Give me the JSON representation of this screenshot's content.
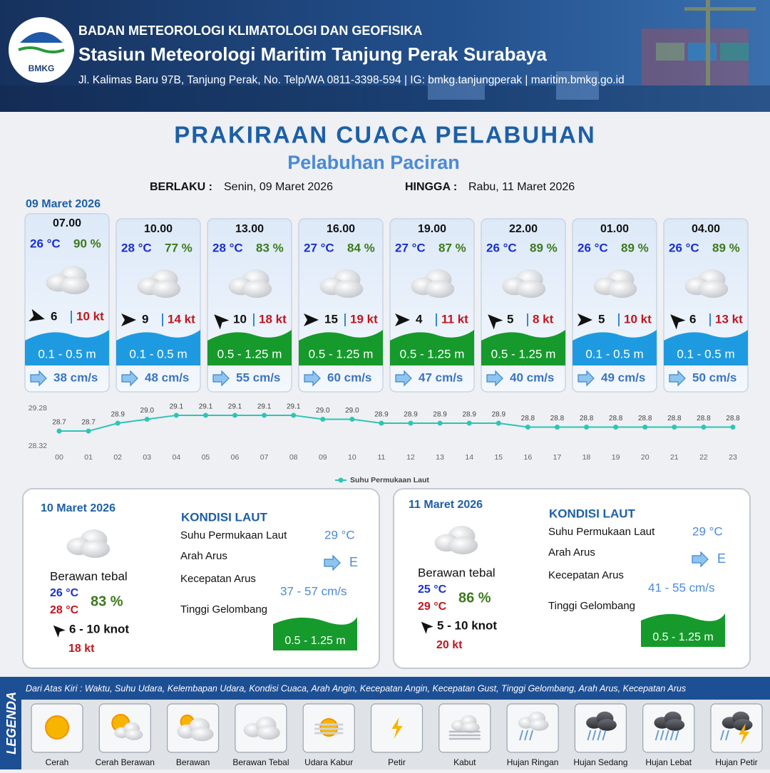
{
  "header": {
    "logo": "BMKG",
    "agency": "BADAN METEOROLOGI KLIMATOLOGI DAN GEOFISIKA",
    "station": "Stasiun Meteorologi Maritim Tanjung Perak Surabaya",
    "address": "Jl. Kalimas Baru 97B, Tanjung Perak, No. Telp/WA 0811-3398-594 | IG: bmkg.tanjungperak | maritim.bmkg.go.id"
  },
  "title": "PRAKIRAAN CUACA PELABUHAN",
  "subtitle": "Pelabuhan Paciran",
  "validity": {
    "from_label": "BERLAKU :",
    "from": "Senin, 09 Maret 2026",
    "to_label": "HINGGA :",
    "to": "Rabu, 11 Maret 2026"
  },
  "day1": "09 Maret 2026",
  "cards": [
    {
      "time": "07.00",
      "temp": "26 °C",
      "humidity": "90 %",
      "wind_heading": 15,
      "wind": "6",
      "gust": "10 kt",
      "wave": "0.1 - 0.5 m",
      "wave_color": "#1e9be0",
      "current": "38 cm/s"
    },
    {
      "time": "10.00",
      "temp": "28 °C",
      "humidity": "77 %",
      "wind_heading": 0,
      "wind": "9",
      "gust": "14 kt",
      "wave": "0.1 - 0.5 m",
      "wave_color": "#1e9be0",
      "current": "48 cm/s"
    },
    {
      "time": "13.00",
      "temp": "28 °C",
      "humidity": "83 %",
      "wind_heading": 225,
      "wind": "10",
      "gust": "18 kt",
      "wave": "0.5 - 1.25 m",
      "wave_color": "#169a2c",
      "current": "55 cm/s"
    },
    {
      "time": "16.00",
      "temp": "27 °C",
      "humidity": "84 %",
      "wind_heading": 0,
      "wind": "15",
      "gust": "19 kt",
      "wave": "0.5 - 1.25 m",
      "wave_color": "#169a2c",
      "current": "60 cm/s"
    },
    {
      "time": "19.00",
      "temp": "27 °C",
      "humidity": "87 %",
      "wind_heading": 0,
      "wind": "4",
      "gust": "11 kt",
      "wave": "0.5 - 1.25 m",
      "wave_color": "#169a2c",
      "current": "47 cm/s"
    },
    {
      "time": "22.00",
      "temp": "26 °C",
      "humidity": "89 %",
      "wind_heading": 225,
      "wind": "5",
      "gust": "8 kt",
      "wave": "0.5 - 1.25 m",
      "wave_color": "#169a2c",
      "current": "40 cm/s"
    },
    {
      "time": "01.00",
      "temp": "26 °C",
      "humidity": "89 %",
      "wind_heading": 0,
      "wind": "5",
      "gust": "10 kt",
      "wave": "0.1 - 0.5 m",
      "wave_color": "#1e9be0",
      "current": "49 cm/s"
    },
    {
      "time": "04.00",
      "temp": "26 °C",
      "humidity": "89 %",
      "wind_heading": 225,
      "wind": "6",
      "gust": "13 kt",
      "wave": "0.1 - 0.5 m",
      "wave_color": "#1e9be0",
      "current": "50 cm/s"
    }
  ],
  "chart_data": {
    "type": "line",
    "categories": [
      "00",
      "01",
      "02",
      "03",
      "04",
      "05",
      "06",
      "07",
      "08",
      "09",
      "10",
      "11",
      "12",
      "13",
      "14",
      "15",
      "16",
      "17",
      "18",
      "19",
      "20",
      "21",
      "22",
      "23"
    ],
    "series": [
      {
        "name": "Suhu Permukaan Laut",
        "color": "#2ec4b6",
        "values": [
          28.7,
          28.7,
          28.9,
          29.0,
          29.1,
          29.1,
          29.1,
          29.1,
          29.1,
          29.0,
          29.0,
          28.9,
          28.9,
          28.9,
          28.9,
          28.9,
          28.8,
          28.8,
          28.8,
          28.8,
          28.8,
          28.8,
          28.8,
          28.8
        ],
        "value_labels": [
          "28.7",
          "28.7",
          "28.9",
          "29.0",
          "29.1",
          "29.1",
          "29.1",
          "29.1",
          "29.1",
          "29.0",
          "29.0",
          "28.9",
          "28.9",
          "28.9",
          "28.9",
          "28.9",
          "28.8",
          "28.8",
          "28.8",
          "28.8",
          "28.8",
          "28.8",
          "28.8",
          "28.8"
        ]
      }
    ],
    "ylim": [
      28.32,
      29.28
    ],
    "yticks": [
      28.32,
      29.28
    ],
    "legend": "bottom"
  },
  "days": [
    {
      "date": "10 Maret 2026",
      "condition": "Berawan tebal",
      "temp_min": "26 °C",
      "temp_max": "28 °C",
      "humidity": "83 %",
      "wind_heading": 225,
      "wind": "6  - 10 knot",
      "gust": "18 kt",
      "sea": {
        "title": "KONDISI LAUT",
        "sst_label": "Suhu Permukaan Laut",
        "sst": "29 °C",
        "current_dir_label": "Arah Arus",
        "current_dir": "E",
        "current_speed_label": "Kecepatan Arus",
        "current_speed": "37  - 57 cm/s",
        "wave_label": "Tinggi Gelombang",
        "wave": "0.5 - 1.25 m"
      }
    },
    {
      "date": "11 Maret 2026",
      "condition": "Berawan tebal",
      "temp_min": "25 °C",
      "temp_max": "29 °C",
      "humidity": "86 %",
      "wind_heading": 225,
      "wind": "5  - 10 knot",
      "gust": "20 kt",
      "sea": {
        "title": "KONDISI LAUT",
        "sst_label": "Suhu Permukaan Laut",
        "sst": "29 °C",
        "current_dir_label": "Arah Arus",
        "current_dir": "E",
        "current_speed_label": "Kecepatan Arus",
        "current_speed": "41  - 55 cm/s",
        "wave_label": "Tinggi Gelombang",
        "wave": "0.5 - 1.25 m"
      }
    }
  ],
  "legend": {
    "label": "LEGENDA",
    "description": "Dari Atas Kiri : Waktu, Suhu Udara, Kelembapan Udara, Kondisi Cuaca, Arah Angin, Kecepatan Angin, Kecepatan Gust, Tinggi Gelombang, Arah Arus, Kecepatan Arus",
    "items": [
      "Cerah",
      "Cerah Berawan",
      "Berawan",
      "Berawan Tebal",
      "Udara Kabur",
      "Petir",
      "Kabut",
      "Hujan Ringan",
      "Hujan Sedang",
      "Hujan Lebat",
      "Hujan Petir"
    ]
  }
}
